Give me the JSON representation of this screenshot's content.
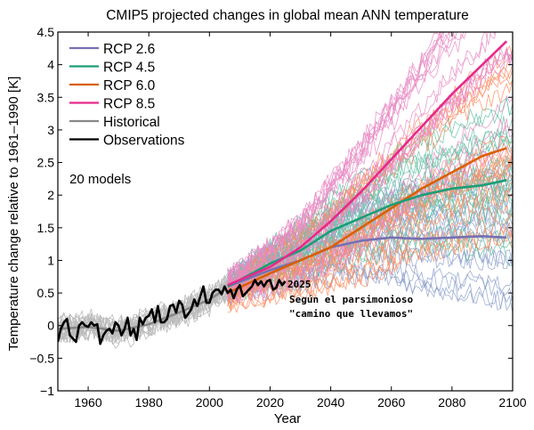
{
  "chart_data": {
    "type": "line",
    "title": "CMIP5 projected changes in global mean ANN temperature",
    "xlabel": "Year",
    "ylabel": "Temperature change relative to 1961–1990 [K]",
    "xlim": [
      1950,
      2100
    ],
    "ylim": [
      -1,
      4.5
    ],
    "xticks": [
      1960,
      1980,
      2000,
      2020,
      2040,
      2060,
      2080,
      2100
    ],
    "xtick_labels": [
      "1960",
      "1980",
      "2000",
      "2020",
      "2040",
      "2060",
      "2080",
      "2100"
    ],
    "yticks": [
      4.5,
      4,
      3.5,
      3,
      2.5,
      2,
      1.5,
      1,
      0.5,
      0,
      -0.5,
      -1
    ],
    "ytick_labels": [
      "4.5",
      "4",
      "3.5",
      "3",
      "2.5",
      "2",
      "1.5",
      "1",
      "0.5",
      "0",
      "−0.5",
      "−1"
    ],
    "grid": false,
    "legend_position": "top-left",
    "legend": [
      {
        "name": "RCP 2.6",
        "color": "#7570b3"
      },
      {
        "name": "RCP 4.5",
        "color": "#1b9e77"
      },
      {
        "name": "RCP 6.0",
        "color": "#d95f02"
      },
      {
        "name": "RCP 8.5",
        "color": "#e7298a"
      },
      {
        "name": "Historical",
        "color": "#888888"
      },
      {
        "name": "Observations",
        "color": "#000000"
      }
    ],
    "model_count_note": "20 models",
    "ensemble_colors": {
      "RCP 2.6": "#8da0cb",
      "RCP 4.5": "#66c2a5",
      "RCP 6.0": "#fc8d62",
      "RCP 8.5": "#e78ac3",
      "Historical": "#bbbbbb"
    },
    "series": [
      {
        "name": "Historical mean",
        "color": "#888888",
        "x": [
          1950,
          1960,
          1970,
          1980,
          1990,
          2000,
          2005
        ],
        "y": [
          -0.05,
          -0.02,
          -0.08,
          0.02,
          0.2,
          0.4,
          0.55
        ]
      },
      {
        "name": "RCP 2.6",
        "color": "#7570b3",
        "x": [
          2006,
          2020,
          2030,
          2040,
          2050,
          2060,
          2070,
          2080,
          2090,
          2098
        ],
        "y": [
          0.6,
          0.85,
          1.0,
          1.2,
          1.3,
          1.35,
          1.33,
          1.35,
          1.37,
          1.35
        ]
      },
      {
        "name": "RCP 4.5",
        "color": "#1b9e77",
        "x": [
          2006,
          2020,
          2030,
          2040,
          2050,
          2060,
          2070,
          2080,
          2090,
          2098
        ],
        "y": [
          0.6,
          0.95,
          1.15,
          1.45,
          1.65,
          1.85,
          2.0,
          2.1,
          2.15,
          2.23
        ]
      },
      {
        "name": "RCP 6.0",
        "color": "#d95f02",
        "x": [
          2006,
          2020,
          2030,
          2040,
          2050,
          2060,
          2070,
          2080,
          2090,
          2098
        ],
        "y": [
          0.5,
          0.8,
          1.0,
          1.2,
          1.5,
          1.8,
          2.1,
          2.35,
          2.6,
          2.72
        ]
      },
      {
        "name": "RCP 8.5",
        "color": "#e7298a",
        "x": [
          2006,
          2020,
          2030,
          2040,
          2050,
          2060,
          2070,
          2080,
          2090,
          2098
        ],
        "y": [
          0.62,
          0.9,
          1.2,
          1.6,
          2.05,
          2.55,
          3.05,
          3.55,
          4.0,
          4.36
        ]
      },
      {
        "name": "Observations",
        "color": "#000000",
        "x": [
          1950,
          1951,
          1952,
          1953,
          1954,
          1955,
          1956,
          1957,
          1958,
          1959,
          1960,
          1961,
          1962,
          1963,
          1964,
          1965,
          1966,
          1967,
          1968,
          1969,
          1970,
          1971,
          1972,
          1973,
          1974,
          1975,
          1976,
          1977,
          1978,
          1979,
          1980,
          1981,
          1982,
          1983,
          1984,
          1985,
          1986,
          1987,
          1988,
          1989,
          1990,
          1991,
          1992,
          1993,
          1994,
          1995,
          1996,
          1997,
          1998,
          1999,
          2000,
          2001,
          2002,
          2003,
          2004,
          2005,
          2006,
          2007,
          2008,
          2009,
          2010,
          2011,
          2012,
          2013,
          2014,
          2015,
          2016,
          2017,
          2018,
          2019,
          2020,
          2021,
          2022,
          2023,
          2024,
          2025
        ],
        "y": [
          -0.25,
          -0.05,
          0.05,
          0.1,
          -0.15,
          -0.2,
          -0.25,
          0.0,
          0.05,
          0.0,
          -0.02,
          0.05,
          0.0,
          0.02,
          -0.28,
          -0.15,
          -0.08,
          -0.05,
          -0.12,
          0.05,
          0.0,
          -0.15,
          -0.05,
          0.12,
          -0.15,
          -0.05,
          -0.22,
          0.12,
          0.02,
          0.12,
          0.15,
          0.25,
          0.05,
          0.3,
          0.05,
          0.05,
          0.1,
          0.3,
          0.32,
          0.2,
          0.38,
          0.32,
          0.12,
          0.18,
          0.25,
          0.4,
          0.3,
          0.45,
          0.6,
          0.35,
          0.35,
          0.5,
          0.55,
          0.55,
          0.48,
          0.6,
          0.5,
          0.55,
          0.42,
          0.55,
          0.62,
          0.45,
          0.5,
          0.55,
          0.6,
          0.7,
          0.62,
          0.68,
          0.6,
          0.68,
          0.7,
          0.55,
          0.58,
          0.7,
          0.62,
          0.68
        ]
      }
    ],
    "annotations": [
      {
        "text": "2025",
        "x": 2025,
        "y": 0.68
      },
      {
        "text": "Según el parsimonioso",
        "x": 2025,
        "y": 0.5
      },
      {
        "text": "\"camino que llevamos\"",
        "x": 2025,
        "y": 0.32
      }
    ]
  }
}
